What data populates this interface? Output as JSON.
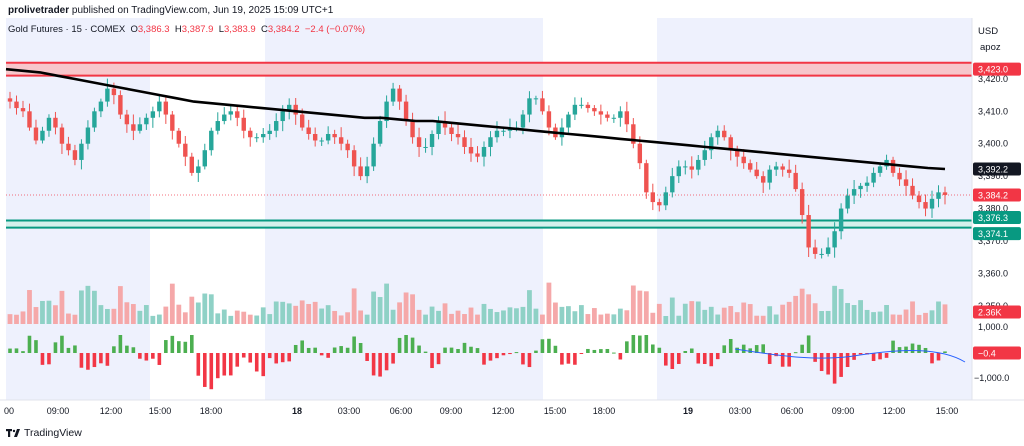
{
  "publish_line": {
    "author": "prolivetrader",
    "text": "published on TradingView.com, Jun 19, 2025 15:09 UTC+1"
  },
  "legend": {
    "symbol": "Gold Futures · 15 · COMEX",
    "open_label": "O",
    "open": "3,386.3",
    "high_label": "H",
    "high": "3,387.9",
    "low_label": "L",
    "low": "3,383.9",
    "close_label": "C",
    "close": "3,384.2",
    "change": "−2.4 (−0.07%)"
  },
  "price_axis": {
    "currency": "USD",
    "ticks": [
      "3,420.0",
      "3,410.0",
      "3,400.0",
      "3,390.0",
      "3,380.0",
      "3,370.0",
      "3,360.0",
      "3,350.0"
    ],
    "tags": {
      "ma": "3,392.2",
      "last": "3,384.2",
      "zone_top": "3,376.3",
      "zone_bottom": "3,374.1",
      "resistance": "3,423.0",
      "volume": "2.36K",
      "osc_value": "−0.4",
      "osc_top": "1,000.0",
      "osc_bottom": "−1,000.0"
    },
    "username": "apoz"
  },
  "time_axis": [
    "00",
    "09:00",
    "12:00",
    "15:00",
    "18:00",
    "18",
    "03:00",
    "06:00",
    "09:00",
    "12:00",
    "15:00",
    "18:00",
    "19",
    "03:00",
    "06:00",
    "09:00",
    "12:00",
    "15:00"
  ],
  "footer": {
    "logo_text": "TradingView"
  },
  "colors": {
    "up": "#26a69a",
    "down": "#ef5350",
    "ma_line": "#000000",
    "resistance_zone": "#f7c6cb",
    "resistance_border": "#f23645",
    "support_border": "#089981",
    "session_shade": "#eef1fd",
    "volume_up": "#8fd1c6",
    "volume_down": "#f5a8a9",
    "osc_up": "#4caf50",
    "osc_down": "#f23645",
    "osc_signal": "#2962ff"
  },
  "chart_data": {
    "type": "candlestick",
    "symbol": "Gold Futures",
    "interval": "15",
    "exchange": "COMEX",
    "y_unit": "USD",
    "ylim": [
      3345,
      3432
    ],
    "levels": {
      "resistance_zone": [
        3421.0,
        3425.0
      ],
      "resistance_label": 3423.0,
      "support_zone": [
        3374.1,
        3376.3
      ],
      "last_price": 3384.2,
      "moving_average_last": 3392.2
    },
    "last_bar": {
      "open": 3386.3,
      "high": 3387.9,
      "low": 3383.9,
      "close": 3384.2,
      "change": -2.4,
      "change_pct": -0.07
    },
    "close_path": [
      3413,
      3411,
      3410,
      3405,
      3401,
      3404,
      3408,
      3405,
      3400,
      3398,
      3395,
      3400,
      3405,
      3410,
      3413,
      3417,
      3415,
      3409,
      3406,
      3404,
      3406,
      3408,
      3410,
      3413,
      3409,
      3404,
      3400,
      3396,
      3391,
      3393,
      3398,
      3404,
      3407,
      3409,
      3410,
      3408,
      3404,
      3402,
      3402,
      3403,
      3404,
      3407,
      3410,
      3412,
      3409,
      3405,
      3403,
      3401,
      3401,
      3403,
      3402,
      3400,
      3398,
      3393,
      3390,
      3393,
      3400,
      3407,
      3413,
      3417,
      3413,
      3407,
      3402,
      3399,
      3399,
      3403,
      3407,
      3405,
      3403,
      3402,
      3399,
      3397,
      3396,
      3399,
      3402,
      3404,
      3404,
      3405,
      3405,
      3409,
      3414,
      3414,
      3410,
      3405,
      3402,
      3405,
      3409,
      3412,
      3412,
      3411,
      3410,
      3409,
      3408,
      3408,
      3410,
      3406,
      3400,
      3394,
      3385,
      3382,
      3381,
      3385,
      3390,
      3393,
      3393,
      3392,
      3395,
      3398,
      3402,
      3404,
      3402,
      3398,
      3396,
      3394,
      3392,
      3390,
      3388,
      3392,
      3393,
      3392,
      3391,
      3386,
      3378,
      3368,
      3366,
      3366,
      3368,
      3373,
      3380,
      3384,
      3386,
      3387,
      3388,
      3391,
      3393,
      3395,
      3391,
      3389,
      3387,
      3384,
      3382,
      3380,
      3383,
      3385,
      3384.2
    ],
    "moving_average_path": [
      3423,
      3422.5,
      3422,
      3421,
      3420,
      3419,
      3418,
      3417,
      3416,
      3415,
      3414,
      3413,
      3412.5,
      3412,
      3411.5,
      3411,
      3410.5,
      3410,
      3409.5,
      3409,
      3408.5,
      3408,
      3408,
      3407.5,
      3407,
      3407,
      3406.5,
      3406,
      3405.5,
      3405,
      3404.5,
      3404,
      3403.5,
      3403,
      3402.5,
      3402,
      3401.5,
      3401,
      3400.5,
      3400,
      3399.5,
      3399,
      3398.5,
      3398,
      3397.5,
      3397,
      3396.5,
      3396,
      3395.5,
      3395,
      3394.5,
      3394,
      3393.5,
      3393,
      3392.5,
      3392.2
    ],
    "oscillator_ylim": [
      -1000,
      1000
    ],
    "oscillator_last": -0.4,
    "volume_last": "2.36K",
    "x_ticks": [
      "00",
      "09:00",
      "12:00",
      "15:00",
      "18:00",
      "18",
      "03:00",
      "06:00",
      "09:00",
      "12:00",
      "15:00",
      "18:00",
      "19",
      "03:00",
      "06:00",
      "09:00",
      "12:00",
      "15:00"
    ]
  }
}
